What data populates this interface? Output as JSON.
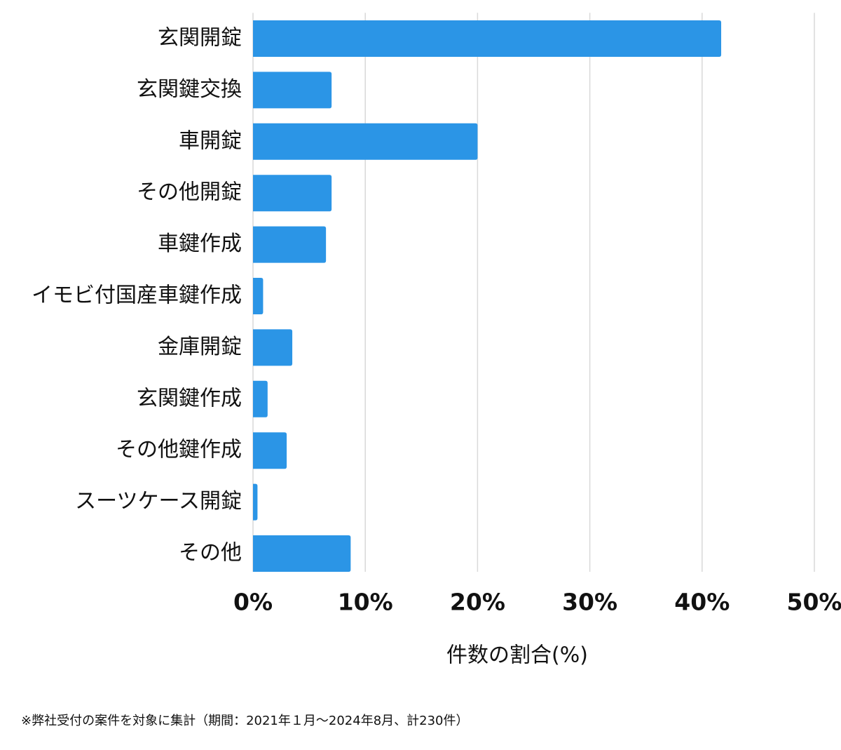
{
  "chart_data": {
    "type": "bar",
    "orientation": "horizontal",
    "categories": [
      "玄関開錠",
      "玄関鍵交換",
      "車開錠",
      "その他開錠",
      "車鍵作成",
      "イモビ付国産車鍵作成",
      "金庫開錠",
      "玄関鍵作成",
      "その他鍵作成",
      "スーツケース開錠",
      "その他"
    ],
    "values": [
      41.7,
      7.0,
      20.0,
      7.0,
      6.5,
      0.9,
      3.5,
      1.3,
      3.0,
      0.4,
      8.7
    ],
    "color": "#2b95e6",
    "xlim": [
      0,
      50
    ],
    "xticks": [
      {
        "value": 0,
        "label": "0%"
      },
      {
        "value": 10,
        "label": "10%"
      },
      {
        "value": 20,
        "label": "20%"
      },
      {
        "value": 30,
        "label": "30%"
      },
      {
        "value": 40,
        "label": "40%"
      },
      {
        "value": 50,
        "label": "50%"
      }
    ],
    "x_label": "件数の割合(%)",
    "footnote": "※弊社受付の案件を対象に集計（期間：2021年１月〜2024年8月、計230件）",
    "grid": true
  }
}
